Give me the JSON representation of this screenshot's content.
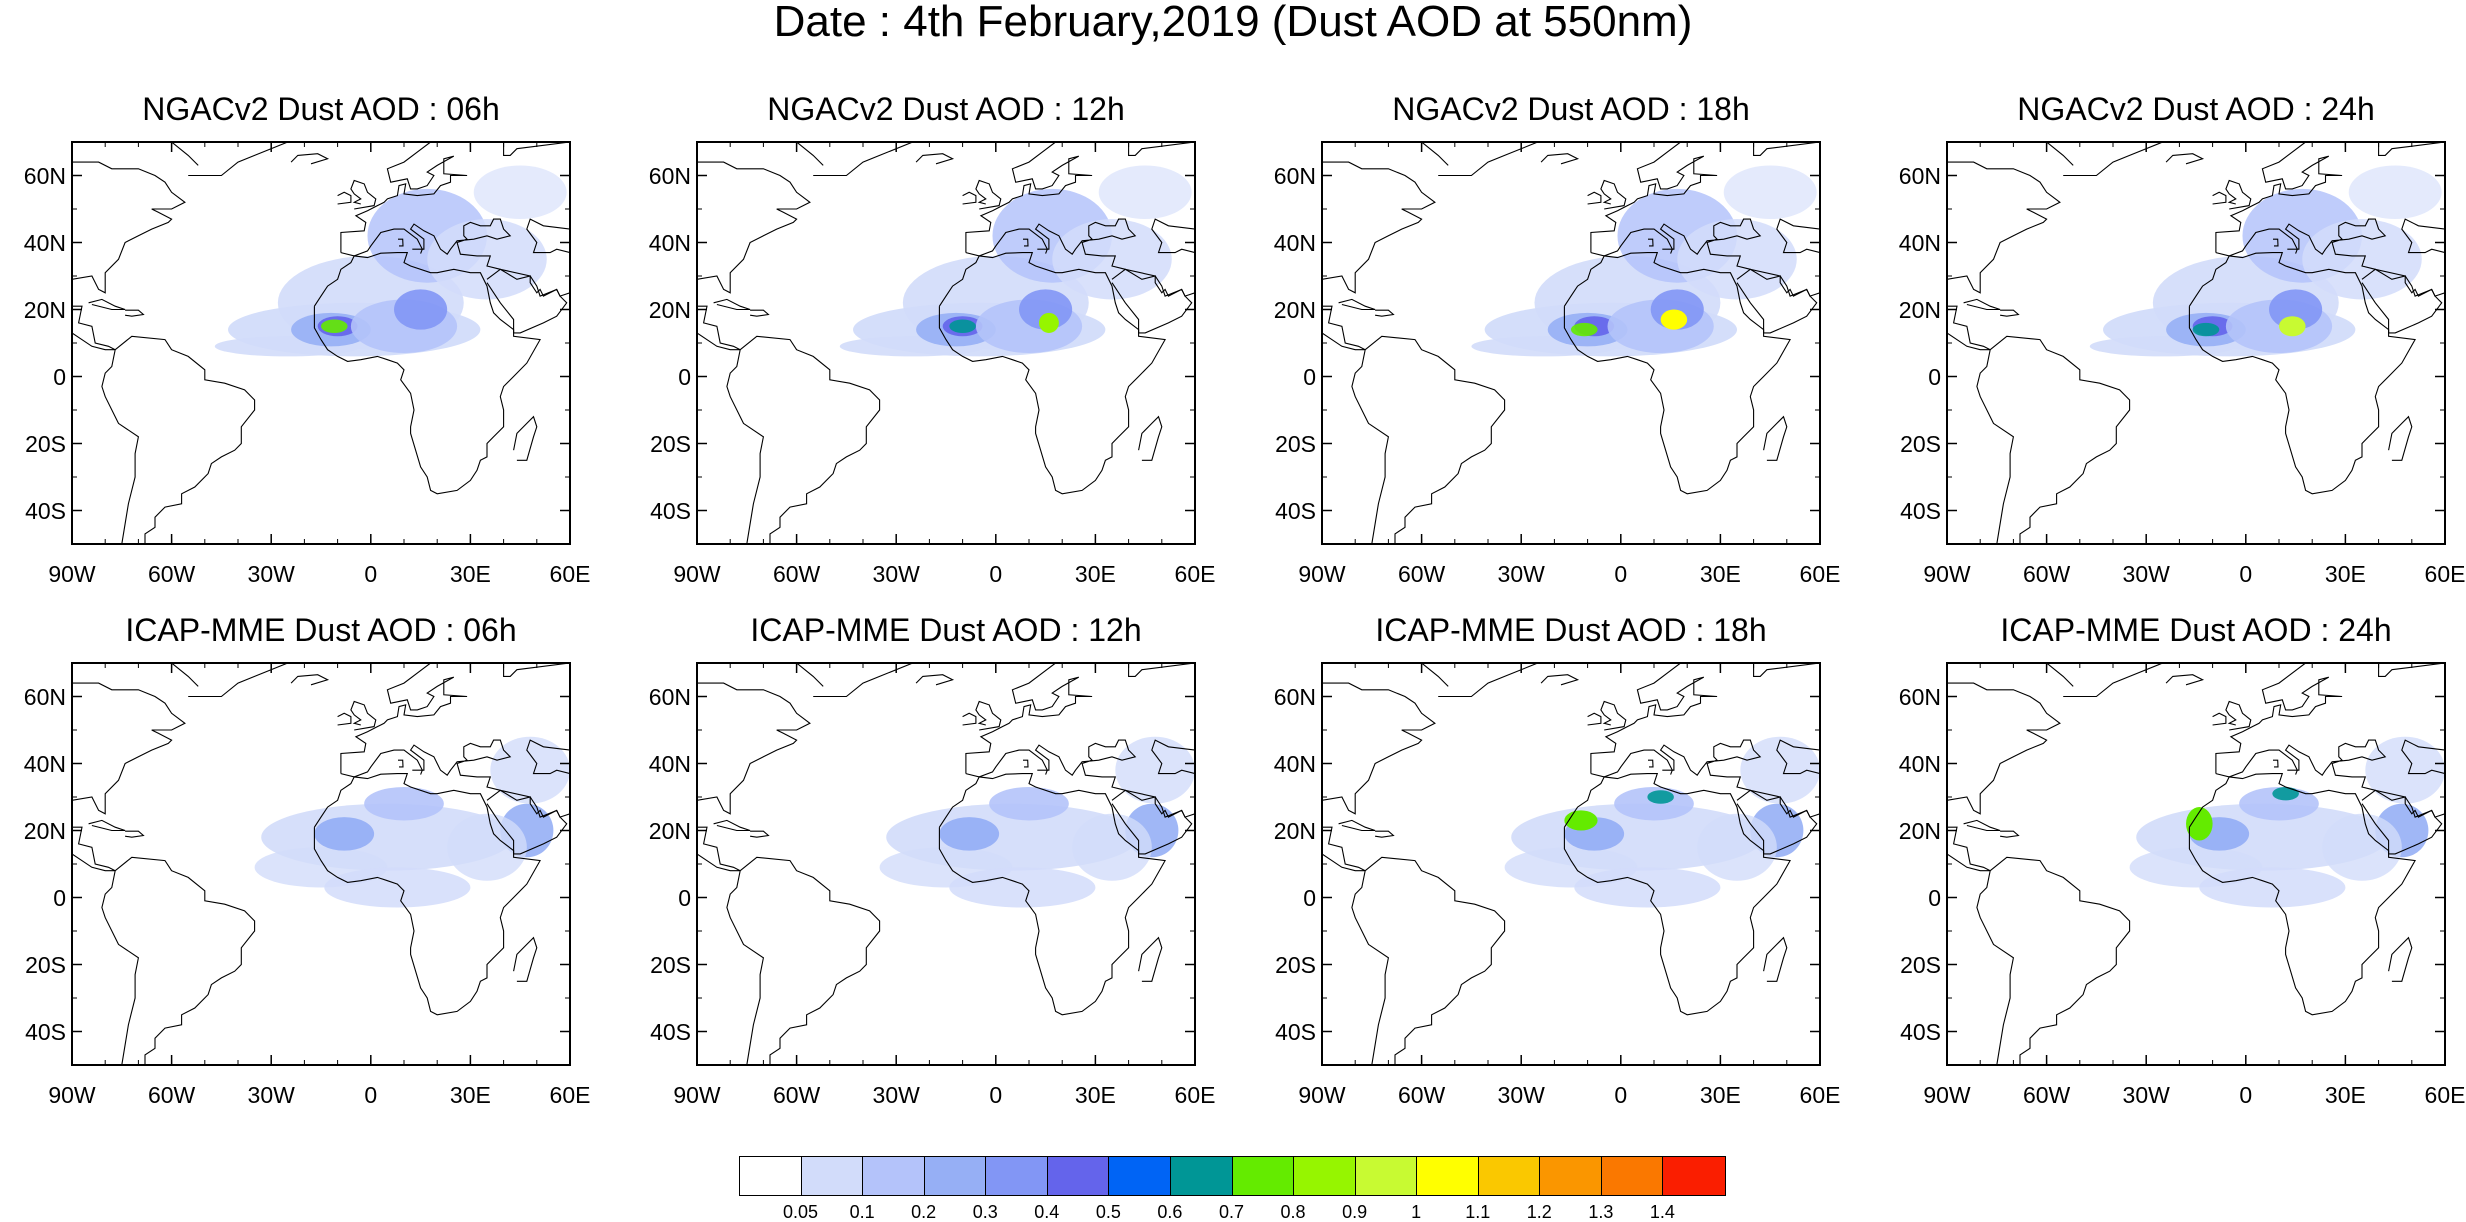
{
  "title": "Date : 4th February,2019 (Dust AOD at 550nm)",
  "panels": [
    {
      "title": "NGACv2 Dust AOD : 06h",
      "model": "NGACv2",
      "hour": "06h"
    },
    {
      "title": "NGACv2 Dust AOD : 12h",
      "model": "NGACv2",
      "hour": "12h"
    },
    {
      "title": "NGACv2 Dust AOD : 18h",
      "model": "NGACv2",
      "hour": "18h"
    },
    {
      "title": "NGACv2 Dust AOD : 24h",
      "model": "NGACv2",
      "hour": "24h"
    },
    {
      "title": "ICAP-MME Dust AOD : 06h",
      "model": "ICAP-MME",
      "hour": "06h"
    },
    {
      "title": "ICAP-MME Dust AOD : 12h",
      "model": "ICAP-MME",
      "hour": "12h"
    },
    {
      "title": "ICAP-MME Dust AOD : 18h",
      "model": "ICAP-MME",
      "hour": "18h"
    },
    {
      "title": "ICAP-MME Dust AOD : 24h",
      "model": "ICAP-MME",
      "hour": "24h"
    }
  ],
  "lat_labels": [
    "60N",
    "40N",
    "20N",
    "0",
    "20S",
    "40S"
  ],
  "lon_labels": [
    "90W",
    "60W",
    "30W",
    "0",
    "30E",
    "60E"
  ],
  "colorbar": {
    "colors": [
      "#ffffff",
      "#d2dcfa",
      "#b4c3fa",
      "#96aff5",
      "#8296f5",
      "#6464eb",
      "#0064f5",
      "#009696",
      "#64eb00",
      "#96f500",
      "#c8fa32",
      "#ffff00",
      "#fac800",
      "#fa9600",
      "#fa7800",
      "#fa1e00"
    ],
    "labels": [
      "0.05",
      "0.1",
      "0.2",
      "0.3",
      "0.4",
      "0.5",
      "0.6",
      "0.7",
      "0.8",
      "0.9",
      "1",
      "1.1",
      "1.2",
      "1.3",
      "1.4"
    ]
  }
}
